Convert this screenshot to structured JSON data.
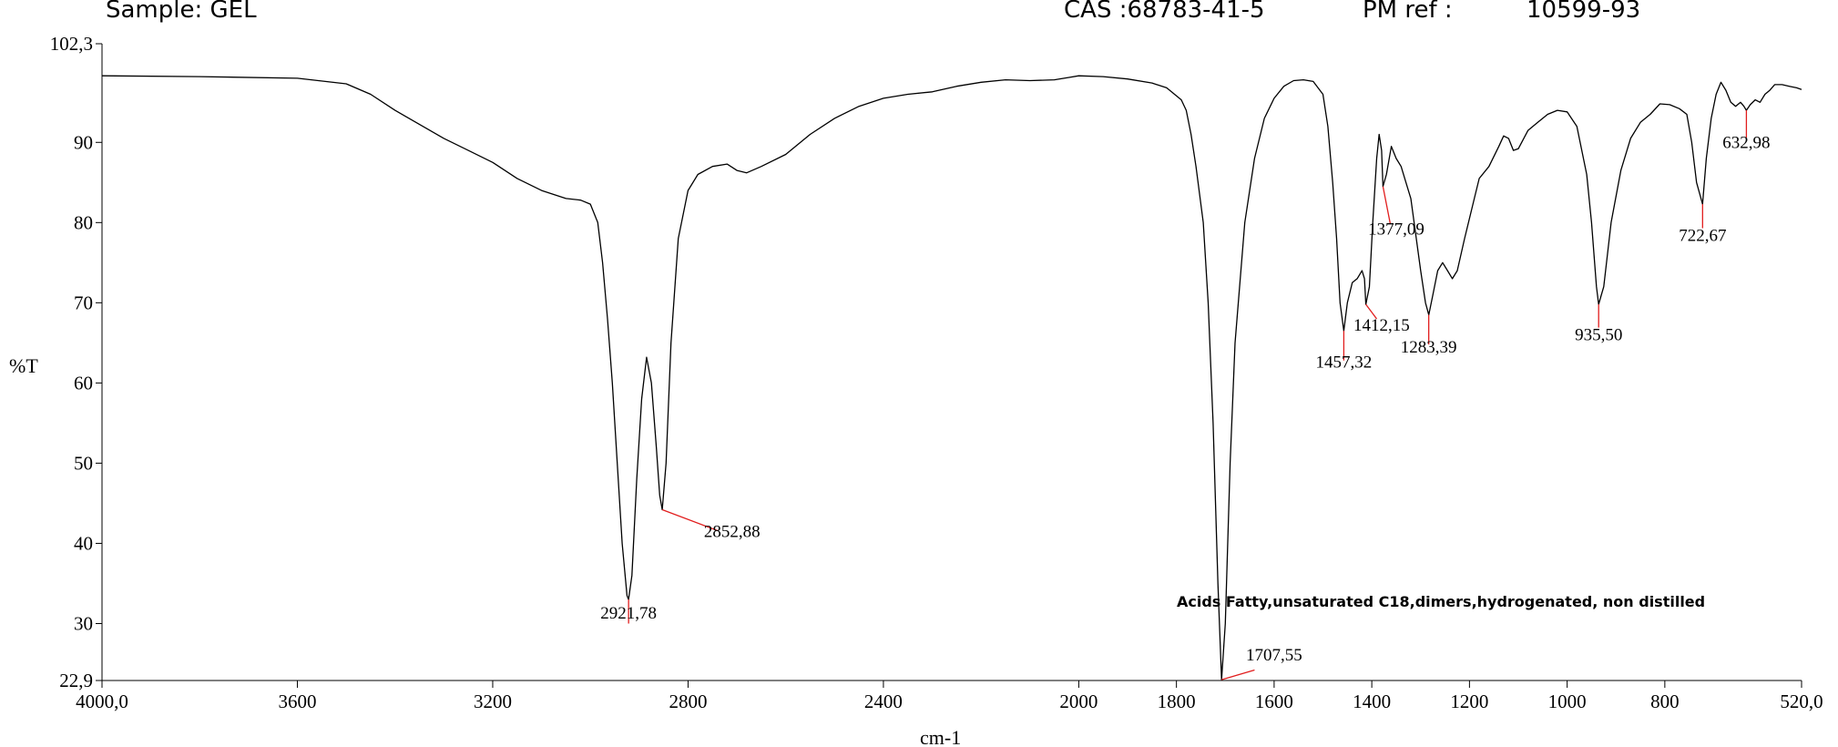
{
  "header": {
    "sample": "Sample: GEL",
    "cas": "CAS :68783-41-5",
    "pm_ref_label": "PM ref :",
    "pm_ref_value": "10599-93"
  },
  "annotation": "Acids Fatty,unsaturated C18,dimers,hydrogenated, non distilled",
  "chart_data": {
    "type": "line",
    "xlabel": "cm-1",
    "ylabel": "%T",
    "xlim": [
      4000,
      520
    ],
    "ylim": [
      22.9,
      102.3
    ],
    "x_ticks": [
      {
        "value": 4000,
        "label": "4000,0"
      },
      {
        "value": 3600,
        "label": "3600"
      },
      {
        "value": 3200,
        "label": "3200"
      },
      {
        "value": 2800,
        "label": "2800"
      },
      {
        "value": 2400,
        "label": "2400"
      },
      {
        "value": 2000,
        "label": "2000"
      },
      {
        "value": 1800,
        "label": "1800"
      },
      {
        "value": 1600,
        "label": "1600"
      },
      {
        "value": 1400,
        "label": "1400"
      },
      {
        "value": 1200,
        "label": "1200"
      },
      {
        "value": 1000,
        "label": "1000"
      },
      {
        "value": 800,
        "label": "800"
      },
      {
        "value": 520,
        "label": "520,0"
      }
    ],
    "y_ticks": [
      {
        "value": 102.3,
        "label": "102,3"
      },
      {
        "value": 90,
        "label": "90"
      },
      {
        "value": 80,
        "label": "80"
      },
      {
        "value": 70,
        "label": "70"
      },
      {
        "value": 60,
        "label": "60"
      },
      {
        "value": 50,
        "label": "50"
      },
      {
        "value": 40,
        "label": "40"
      },
      {
        "value": 30,
        "label": "30"
      },
      {
        "value": 22.9,
        "label": "22,9"
      }
    ],
    "series": [
      {
        "color": "#000000",
        "points": [
          [
            4000,
            98.3
          ],
          [
            3800,
            98.2
          ],
          [
            3600,
            98.0
          ],
          [
            3500,
            97.3
          ],
          [
            3450,
            96.0
          ],
          [
            3400,
            94.0
          ],
          [
            3300,
            90.5
          ],
          [
            3200,
            87.5
          ],
          [
            3150,
            85.5
          ],
          [
            3100,
            84.0
          ],
          [
            3050,
            83.0
          ],
          [
            3020,
            82.8
          ],
          [
            3000,
            82.3
          ],
          [
            2985,
            80.0
          ],
          [
            2975,
            75.0
          ],
          [
            2965,
            68.0
          ],
          [
            2955,
            60.0
          ],
          [
            2945,
            50.0
          ],
          [
            2935,
            40.0
          ],
          [
            2925,
            33.5
          ],
          [
            2921.78,
            33.0
          ],
          [
            2915,
            36.0
          ],
          [
            2905,
            48.0
          ],
          [
            2895,
            58.0
          ],
          [
            2885,
            63.2
          ],
          [
            2875,
            60.0
          ],
          [
            2865,
            52.0
          ],
          [
            2858,
            46.0
          ],
          [
            2852.88,
            44.2
          ],
          [
            2845,
            50.0
          ],
          [
            2835,
            65.0
          ],
          [
            2820,
            78.0
          ],
          [
            2800,
            84.0
          ],
          [
            2780,
            86.0
          ],
          [
            2750,
            87.0
          ],
          [
            2720,
            87.3
          ],
          [
            2700,
            86.5
          ],
          [
            2680,
            86.2
          ],
          [
            2650,
            87.0
          ],
          [
            2600,
            88.5
          ],
          [
            2550,
            91.0
          ],
          [
            2500,
            93.0
          ],
          [
            2450,
            94.5
          ],
          [
            2400,
            95.5
          ],
          [
            2350,
            96.0
          ],
          [
            2300,
            96.3
          ],
          [
            2250,
            97.0
          ],
          [
            2200,
            97.5
          ],
          [
            2150,
            97.8
          ],
          [
            2100,
            97.7
          ],
          [
            2050,
            97.8
          ],
          [
            2020,
            98.1
          ],
          [
            2000,
            98.3
          ],
          [
            1950,
            98.2
          ],
          [
            1900,
            97.9
          ],
          [
            1850,
            97.4
          ],
          [
            1820,
            96.8
          ],
          [
            1800,
            95.8
          ],
          [
            1790,
            95.3
          ],
          [
            1780,
            94.0
          ],
          [
            1770,
            91.0
          ],
          [
            1760,
            87.0
          ],
          [
            1745,
            80.0
          ],
          [
            1735,
            70.0
          ],
          [
            1725,
            55.0
          ],
          [
            1715,
            35.0
          ],
          [
            1707.55,
            23.0
          ],
          [
            1700,
            30.0
          ],
          [
            1690,
            50.0
          ],
          [
            1680,
            65.0
          ],
          [
            1660,
            80.0
          ],
          [
            1640,
            88.0
          ],
          [
            1620,
            93.0
          ],
          [
            1600,
            95.5
          ],
          [
            1580,
            97.0
          ],
          [
            1560,
            97.7
          ],
          [
            1540,
            97.8
          ],
          [
            1520,
            97.6
          ],
          [
            1500,
            96.0
          ],
          [
            1490,
            92.0
          ],
          [
            1480,
            85.0
          ],
          [
            1472,
            78.0
          ],
          [
            1465,
            70.0
          ],
          [
            1457.32,
            66.5
          ],
          [
            1450,
            70.0
          ],
          [
            1440,
            72.5
          ],
          [
            1430,
            73.0
          ],
          [
            1420,
            74.0
          ],
          [
            1415,
            73.0
          ],
          [
            1412.15,
            69.8
          ],
          [
            1405,
            72.0
          ],
          [
            1398,
            80.0
          ],
          [
            1390,
            88.0
          ],
          [
            1385,
            91.0
          ],
          [
            1380,
            89.0
          ],
          [
            1377.09,
            84.5
          ],
          [
            1370,
            86.0
          ],
          [
            1360,
            89.5
          ],
          [
            1350,
            88.0
          ],
          [
            1340,
            87.0
          ],
          [
            1320,
            83.0
          ],
          [
            1300,
            74.0
          ],
          [
            1290,
            70.0
          ],
          [
            1283.39,
            68.5
          ],
          [
            1275,
            71.0
          ],
          [
            1265,
            74.0
          ],
          [
            1255,
            75.0
          ],
          [
            1245,
            74.0
          ],
          [
            1235,
            73.0
          ],
          [
            1225,
            74.0
          ],
          [
            1210,
            78.0
          ],
          [
            1190,
            83.0
          ],
          [
            1180,
            85.5
          ],
          [
            1160,
            87.0
          ],
          [
            1140,
            89.5
          ],
          [
            1130,
            90.8
          ],
          [
            1120,
            90.5
          ],
          [
            1110,
            89.0
          ],
          [
            1100,
            89.2
          ],
          [
            1080,
            91.5
          ],
          [
            1060,
            92.5
          ],
          [
            1040,
            93.5
          ],
          [
            1020,
            94.0
          ],
          [
            1000,
            93.8
          ],
          [
            980,
            92.0
          ],
          [
            960,
            86.0
          ],
          [
            950,
            80.0
          ],
          [
            940,
            72.0
          ],
          [
            935.5,
            69.8
          ],
          [
            925,
            72.0
          ],
          [
            910,
            80.0
          ],
          [
            890,
            86.5
          ],
          [
            870,
            90.5
          ],
          [
            850,
            92.5
          ],
          [
            830,
            93.5
          ],
          [
            810,
            94.8
          ],
          [
            790,
            94.7
          ],
          [
            770,
            94.2
          ],
          [
            755,
            93.5
          ],
          [
            745,
            90.0
          ],
          [
            735,
            85.0
          ],
          [
            722.67,
            82.3
          ],
          [
            715,
            88.0
          ],
          [
            705,
            93.0
          ],
          [
            695,
            96.0
          ],
          [
            685,
            97.5
          ],
          [
            675,
            96.5
          ],
          [
            665,
            95.0
          ],
          [
            655,
            94.5
          ],
          [
            645,
            95.0
          ],
          [
            638,
            94.5
          ],
          [
            632.98,
            94.0
          ],
          [
            625,
            94.7
          ],
          [
            615,
            95.3
          ],
          [
            605,
            95.0
          ],
          [
            595,
            96.0
          ],
          [
            585,
            96.5
          ],
          [
            575,
            97.2
          ],
          [
            560,
            97.2
          ],
          [
            545,
            97.0
          ],
          [
            530,
            96.8
          ],
          [
            520,
            96.6
          ]
        ]
      }
    ],
    "peaks": [
      {
        "x": 2921.78,
        "y": 33.0,
        "label": "2921,78",
        "label_x": 2921.78,
        "label_y": 30.6,
        "lead_to_x": 2921.78,
        "lead_to_y": 30.0
      },
      {
        "x": 2852.88,
        "y": 44.2,
        "label": "2852,88",
        "label_x": 2710,
        "label_y": 40.8,
        "lead_to_x": 2740,
        "lead_to_y": 41.6
      },
      {
        "x": 1707.55,
        "y": 23.0,
        "label": "1707,55",
        "label_x": 1600,
        "label_y": 25.4,
        "lead_to_x": 1640,
        "lead_to_y": 24.2
      },
      {
        "x": 1457.32,
        "y": 66.5,
        "label": "1457,32",
        "label_x": 1457.32,
        "label_y": 61.9,
        "lead_to_x": 1457.32,
        "lead_to_y": 62.8
      },
      {
        "x": 1412.15,
        "y": 69.8,
        "label": "1412,15",
        "label_x": 1380,
        "label_y": 66.5,
        "lead_to_x": 1390,
        "lead_to_y": 68.0
      },
      {
        "x": 1377.09,
        "y": 84.5,
        "label": "1377,09",
        "label_x": 1350,
        "label_y": 78.5,
        "lead_to_x": 1362,
        "lead_to_y": 79.8
      },
      {
        "x": 1283.39,
        "y": 68.5,
        "label": "1283,39",
        "label_x": 1283.39,
        "label_y": 63.8,
        "lead_to_x": 1283.39,
        "lead_to_y": 64.8
      },
      {
        "x": 935.5,
        "y": 69.8,
        "label": "935,50",
        "label_x": 935.5,
        "label_y": 65.3,
        "lead_to_x": 935.5,
        "lead_to_y": 66.9
      },
      {
        "x": 722.67,
        "y": 82.3,
        "label": "722,67",
        "label_x": 722.67,
        "label_y": 77.7,
        "lead_to_x": 722.67,
        "lead_to_y": 79.3
      },
      {
        "x": 632.98,
        "y": 94.0,
        "label": "632,98",
        "label_x": 632.98,
        "label_y": 89.3,
        "lead_to_x": 632.98,
        "lead_to_y": 90.6
      }
    ]
  }
}
